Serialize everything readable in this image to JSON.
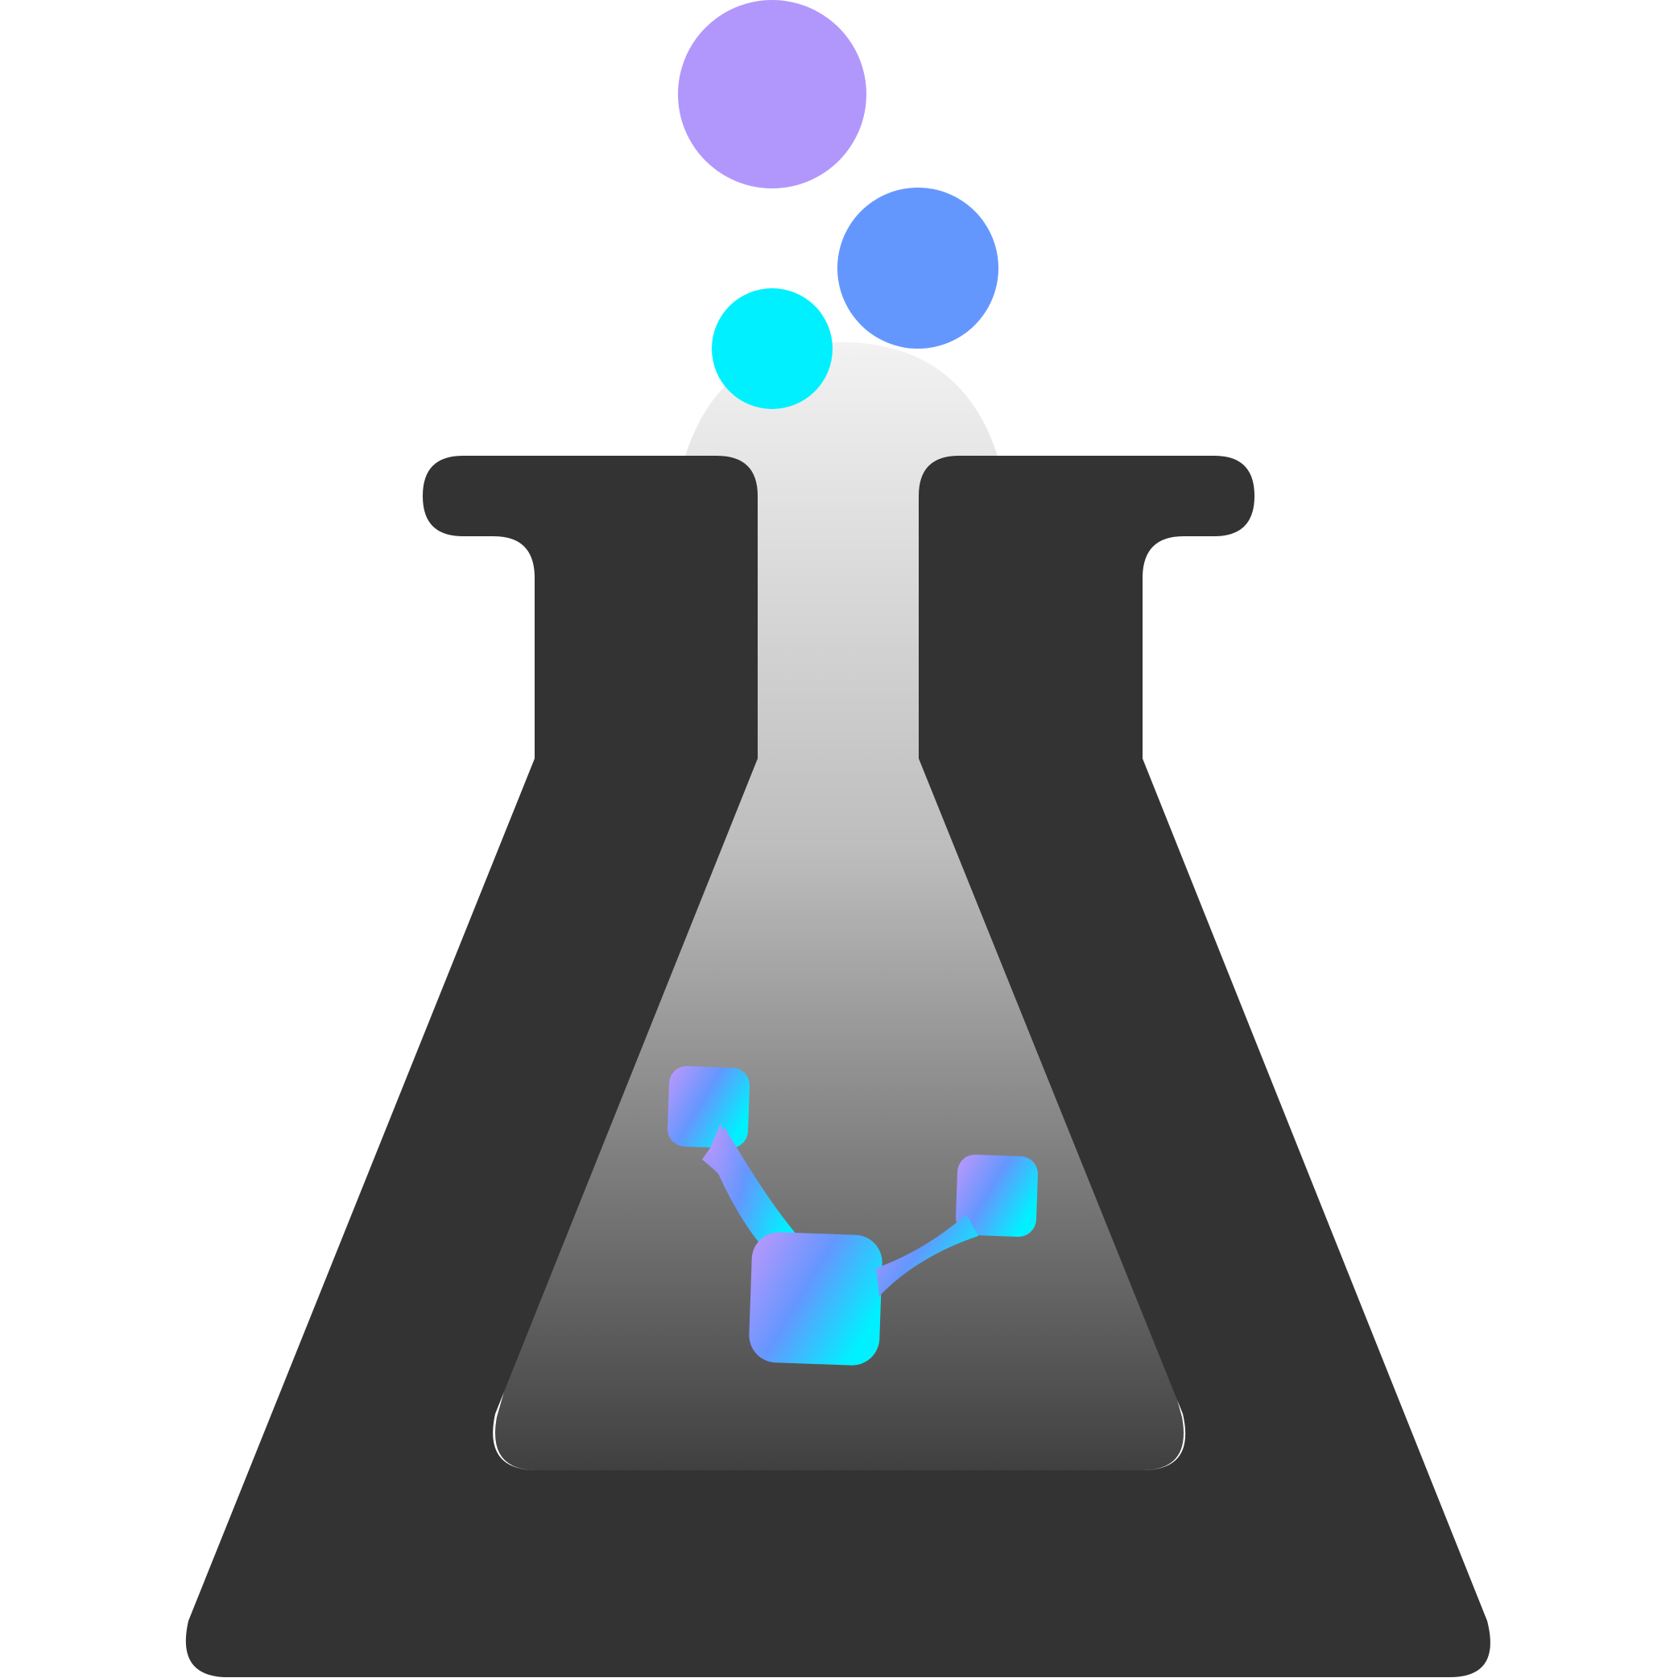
{
  "logo": {
    "icon": "flask-icon",
    "colors": {
      "flask_body": "#333333",
      "liquid_top": "#f2f2f2",
      "liquid_mid": "#bdbdbd",
      "liquid_bottom": "#404040",
      "bubble_large": "#b197fc",
      "bubble_medium": "#6497fe",
      "bubble_small": "#00f0ff",
      "molecule_start": "#b197fc",
      "molecule_mid": "#6497fe",
      "molecule_end": "#00f0ff"
    },
    "bubbles": [
      {
        "name": "bubble-large-icon",
        "color_key": "bubble_large"
      },
      {
        "name": "bubble-medium-icon",
        "color_key": "bubble_medium"
      },
      {
        "name": "bubble-small-icon",
        "color_key": "bubble_small"
      }
    ],
    "molecule": {
      "icon": "molecule-icon"
    }
  }
}
